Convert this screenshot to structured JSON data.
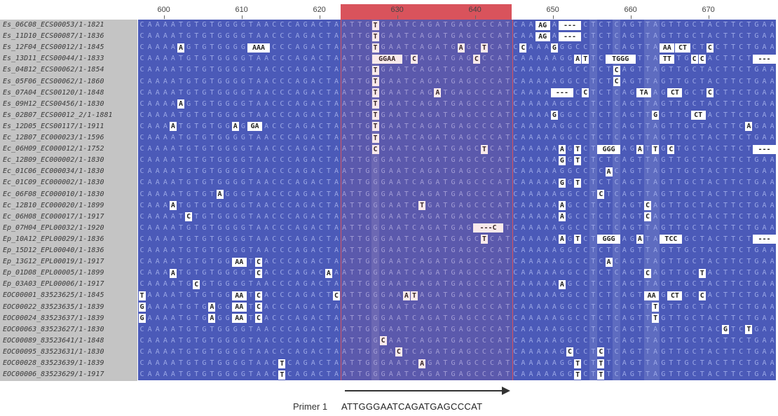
{
  "ruler": {
    "ticks": [
      "600",
      "610",
      "620",
      "630",
      "640",
      "650",
      "660",
      "670"
    ]
  },
  "sequences": [
    "Es_06C08_ECS00053/1-1821",
    "Es_11D10_ECS00087/1-1836",
    "Es_12F04_ECS00012/1-1845",
    "Es_13D11_ECS00044/1-1833",
    "Es_04B12_ECS00062/1-1854",
    "Es_05F06_ECS00062/1-1860",
    "Es_07A04_ECS00120/1-1848",
    "Es_09H12_ECS00456/1-1830",
    "Es_02B07_ECS00012_2/1-1881",
    "Es_12D05_ECS00117/1-1911",
    "Ec_12B07_EC000023/1-1596",
    "Ec_06H09_EC000012/1-1752",
    "Ec_12B09_EC000002/1-1830",
    "Ec_01C06_EC000034/1-1830",
    "Ec_01C09_EC000002/1-1830",
    "Ec_06F08_EC000010/1-1830",
    "Ec_12B10_EC000020/1-1899",
    "Ec_06H08_EC000017/1-1917",
    "Ep_07H04_EPL00032/1-1920",
    "Ep_10A12_EPL00029/1-1836",
    "Ep_15D12_EPL00040/1-1836",
    "Ep_13G12_EPL00019/1-1917",
    "Ep_01D08_EPL00005/1-1899",
    "Ep_03A03_EPL00006/1-1917",
    "EOC00001_83523625/1-1845",
    "EOC00022_83523635/1-1839",
    "EOC00024_83523637/1-1839",
    "EOC00063_83523627/1-1830",
    "EOC00089_83523641/1-1848",
    "EOC00095_83523631/1-1830",
    "EOC00028_83523639/1-1839",
    "EOC00006_83523629/1-1917"
  ],
  "consensus": "CAAAATGTGTGGGGTAACCCAGACTAATTGGGAATCAGATGAGCCCATCAAAAAGGCCTCTCAGTTAGTTGCTACTTCTGAA",
  "differences": [
    [
      [
        30,
        "T"
      ],
      [
        51,
        "AG"
      ],
      [
        54,
        "---"
      ]
    ],
    [
      [
        30,
        "T"
      ],
      [
        51,
        "AG"
      ],
      [
        54,
        "---"
      ]
    ],
    [
      [
        5,
        "A"
      ],
      [
        14,
        "AAA"
      ],
      [
        30,
        "T"
      ],
      [
        41,
        "A"
      ],
      [
        44,
        "T"
      ],
      [
        49,
        "C"
      ],
      [
        53,
        "G"
      ],
      [
        67,
        "AA"
      ],
      [
        69,
        "CT"
      ],
      [
        73,
        "C"
      ]
    ],
    [
      [
        30,
        "GGAA"
      ],
      [
        35,
        "C"
      ],
      [
        43,
        "C"
      ],
      [
        56,
        "A"
      ],
      [
        57,
        "T"
      ],
      [
        60,
        "TGGG"
      ],
      [
        67,
        "TT"
      ],
      [
        71,
        "C"
      ],
      [
        72,
        "C"
      ],
      [
        79,
        "---"
      ]
    ],
    [
      [
        30,
        "T"
      ],
      [
        61,
        "C"
      ]
    ],
    [
      [
        30,
        "T"
      ],
      [
        61,
        "C"
      ]
    ],
    [
      [
        30,
        "T"
      ],
      [
        38,
        "A"
      ],
      [
        53,
        "---"
      ],
      [
        57,
        "C"
      ],
      [
        64,
        "TA"
      ],
      [
        68,
        "CT"
      ],
      [
        73,
        "C"
      ]
    ],
    [
      [
        5,
        "A"
      ],
      [
        30,
        "T"
      ]
    ],
    [
      [
        30,
        "T"
      ],
      [
        53,
        "G"
      ],
      [
        66,
        "G"
      ],
      [
        71,
        "CT"
      ]
    ],
    [
      [
        4,
        "A"
      ],
      [
        12,
        "A"
      ],
      [
        14,
        "GA"
      ],
      [
        30,
        "T"
      ],
      [
        78,
        "A"
      ]
    ],
    [
      [
        30,
        "T"
      ]
    ],
    [
      [
        30,
        "C"
      ],
      [
        44,
        "T"
      ],
      [
        54,
        "A"
      ],
      [
        56,
        "T"
      ],
      [
        59,
        "GGG"
      ],
      [
        64,
        "A"
      ],
      [
        66,
        "T"
      ],
      [
        68,
        "C"
      ],
      [
        79,
        "---"
      ]
    ],
    [
      [
        54,
        "G"
      ],
      [
        56,
        "T"
      ]
    ],
    [
      [
        60,
        "A"
      ]
    ],
    [
      [
        54,
        "G"
      ],
      [
        56,
        "T"
      ]
    ],
    [
      [
        10,
        "A"
      ],
      [
        59,
        "C"
      ]
    ],
    [
      [
        4,
        "A"
      ],
      [
        36,
        "T"
      ],
      [
        54,
        "A"
      ],
      [
        65,
        "C"
      ]
    ],
    [
      [
        6,
        "C"
      ],
      [
        54,
        "A"
      ],
      [
        65,
        "C"
      ]
    ],
    [
      [
        43,
        "---C"
      ]
    ],
    [
      [
        44,
        "T"
      ],
      [
        54,
        "A"
      ],
      [
        56,
        "T"
      ],
      [
        59,
        "GGG"
      ],
      [
        64,
        "A"
      ],
      [
        67,
        "TCC"
      ],
      [
        79,
        "---"
      ]
    ],
    [],
    [
      [
        12,
        "AA"
      ],
      [
        15,
        "C"
      ],
      [
        60,
        "A"
      ]
    ],
    [
      [
        4,
        "A"
      ],
      [
        15,
        "C"
      ],
      [
        24,
        "A"
      ],
      [
        65,
        "C"
      ],
      [
        72,
        "T"
      ]
    ],
    [
      [
        7,
        "C"
      ],
      [
        54,
        "A"
      ]
    ],
    [
      [
        0,
        "T"
      ],
      [
        12,
        "AA"
      ],
      [
        15,
        "C"
      ],
      [
        25,
        "C"
      ],
      [
        34,
        "A"
      ],
      [
        35,
        "T"
      ],
      [
        65,
        "AA"
      ],
      [
        68,
        "CT"
      ],
      [
        72,
        "C"
      ]
    ],
    [
      [
        0,
        "G"
      ],
      [
        9,
        "A"
      ],
      [
        12,
        "AA"
      ],
      [
        15,
        "C"
      ],
      [
        66,
        "T"
      ]
    ],
    [
      [
        0,
        "G"
      ],
      [
        9,
        "A"
      ],
      [
        12,
        "AA"
      ],
      [
        15,
        "C"
      ],
      [
        66,
        "T"
      ]
    ],
    [
      [
        75,
        "G"
      ],
      [
        78,
        "T"
      ]
    ],
    [
      [
        31,
        "C"
      ]
    ],
    [
      [
        33,
        "C"
      ],
      [
        55,
        "C"
      ],
      [
        59,
        "C"
      ]
    ],
    [
      [
        18,
        "T"
      ],
      [
        36,
        "A"
      ],
      [
        56,
        "T"
      ],
      [
        59,
        "T"
      ]
    ],
    [
      [
        18,
        "T"
      ],
      [
        56,
        "T"
      ],
      [
        59,
        "T"
      ]
    ]
  ],
  "primer": {
    "label": "Primer 1",
    "sequence": "ATTGGGAATCAGATGAGCCCAT"
  },
  "colors": {
    "alignment_blue": "#4b5ab8",
    "highlight_red": "#d9535c",
    "name_panel": "#c4c4c4"
  }
}
